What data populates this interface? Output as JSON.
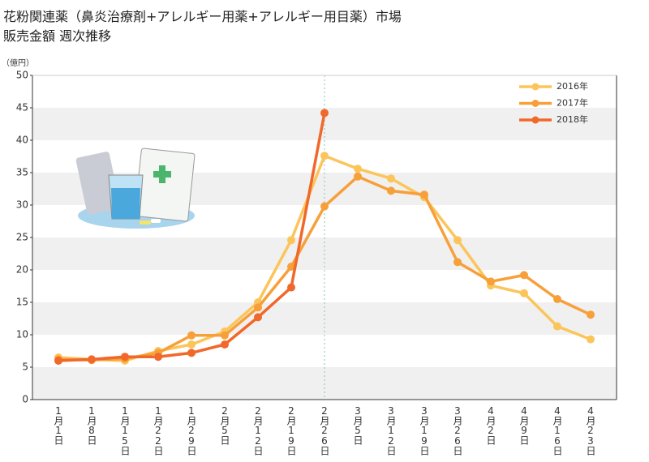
{
  "chart_data": {
    "type": "line",
    "title": "花粉関連薬（鼻炎治療剤+アレルギー用薬+アレルギー用目薬）市場",
    "subtitle": "販売金額 週次推移",
    "y_label": "（億円）",
    "categories": [
      "1月1日",
      "1月8日",
      "1月15日",
      "1月22日",
      "1月29日",
      "2月5日",
      "2月12日",
      "2月19日",
      "2月26日",
      "3月5日",
      "3月12日",
      "3月19日",
      "3月26日",
      "4月2日",
      "4月9日",
      "4月16日",
      "4月23日"
    ],
    "series": [
      {
        "name": "2016年",
        "color": "#fbc55b",
        "values": [
          6.5,
          6.2,
          6.0,
          7.5,
          8.5,
          10.5,
          15.0,
          24.6,
          37.6,
          35.6,
          34.1,
          31.2,
          24.6,
          17.6,
          16.4,
          11.3,
          9.3
        ]
      },
      {
        "name": "2017年",
        "color": "#f7a03a",
        "values": [
          6.2,
          6.1,
          6.3,
          7.2,
          9.9,
          9.9,
          14.2,
          20.5,
          29.8,
          34.4,
          32.2,
          31.6,
          21.2,
          18.2,
          19.2,
          15.5,
          13.1
        ]
      },
      {
        "name": "2018年",
        "color": "#f0682a",
        "values": [
          6.0,
          6.2,
          6.6,
          6.6,
          7.2,
          8.5,
          12.7,
          17.3,
          44.2,
          null,
          null,
          null,
          null,
          null,
          null,
          null,
          null
        ]
      }
    ],
    "ylim": [
      0,
      50
    ],
    "yticks": [
      0,
      5,
      10,
      15,
      20,
      25,
      30,
      35,
      40,
      45,
      50
    ],
    "legend": "top-right"
  }
}
